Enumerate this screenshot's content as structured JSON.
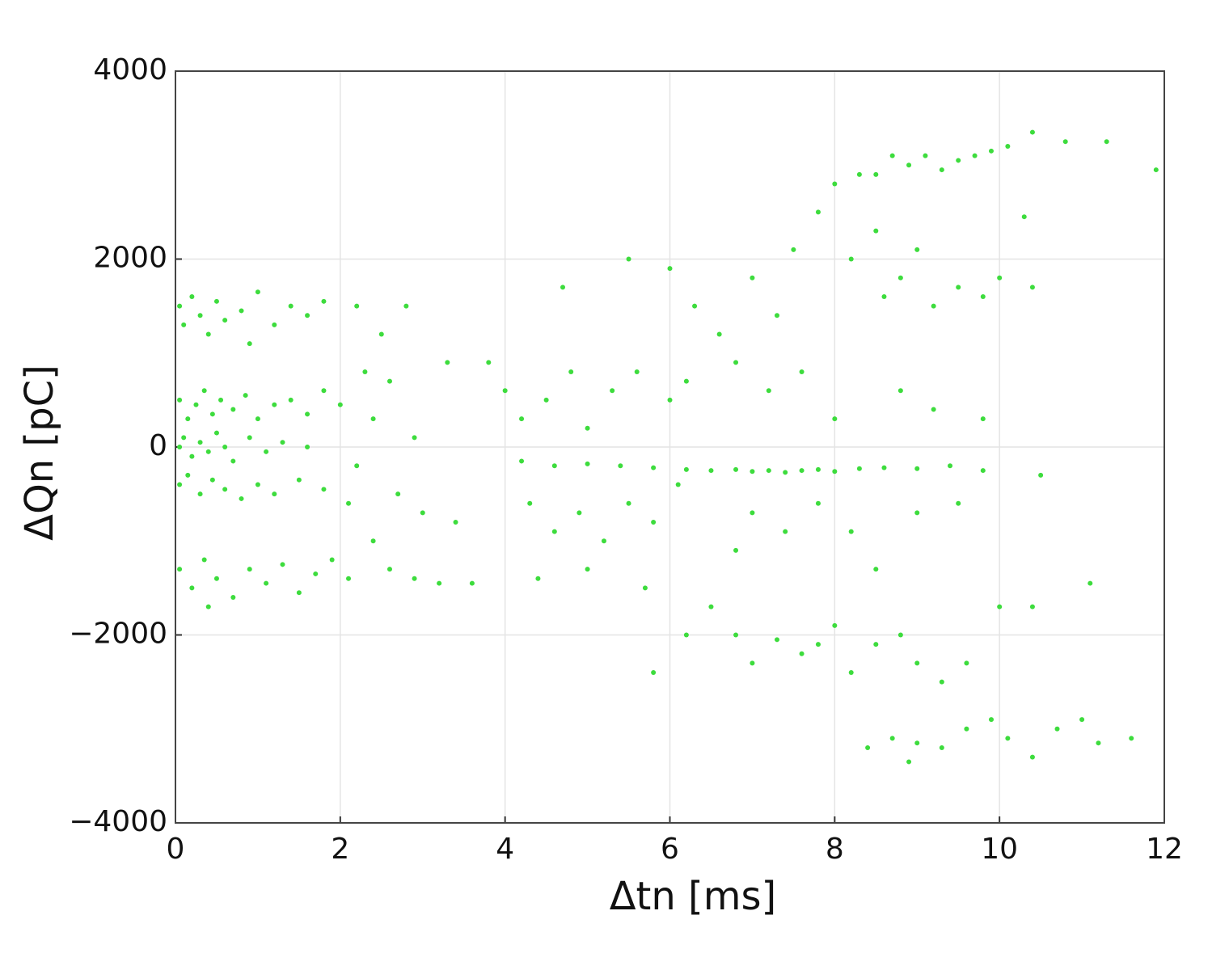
{
  "chart_data": {
    "type": "scatter",
    "x_label": "Δtn [ms]",
    "y_label": "ΔQn [pC]",
    "color": "#3ddc3d",
    "grid": true,
    "xlim": [
      0,
      12
    ],
    "xticks": [
      0,
      2,
      4,
      6,
      8,
      10,
      12
    ],
    "ylim": [
      -4000,
      4000
    ],
    "yticks": [
      {
        "value": -4000,
        "label": "−4000"
      },
      {
        "value": -2000,
        "label": "−2000"
      },
      0,
      2000,
      4000
    ],
    "x": [
      0.05,
      0.1,
      0.2,
      0.3,
      0.4,
      0.5,
      0.6,
      0.8,
      1.0,
      1.2,
      1.4,
      1.6,
      1.8,
      0.9,
      0.05,
      0.15,
      0.25,
      0.35,
      0.45,
      0.55,
      0.7,
      0.85,
      1.0,
      1.2,
      1.4,
      1.6,
      1.8,
      2.0,
      0.05,
      0.1,
      0.2,
      0.3,
      0.4,
      0.5,
      0.6,
      0.7,
      0.9,
      1.1,
      1.3,
      1.6,
      0.05,
      0.15,
      0.3,
      0.45,
      0.6,
      0.8,
      1.0,
      1.2,
      1.5,
      1.8,
      2.1,
      0.05,
      0.2,
      0.35,
      0.5,
      0.7,
      0.9,
      1.1,
      1.3,
      1.5,
      1.7,
      1.9,
      2.1,
      0.4,
      2.2,
      2.5,
      2.8,
      2.3,
      2.6,
      2.4,
      2.9,
      2.2,
      2.7,
      3.0,
      2.4,
      2.6,
      2.9,
      3.2,
      3.3,
      3.4,
      3.6,
      3.8,
      4.0,
      4.2,
      4.5,
      4.8,
      5.0,
      5.3,
      5.6,
      6.0,
      6.2,
      4.3,
      4.6,
      4.9,
      5.2,
      5.5,
      5.8,
      6.1,
      4.4,
      5.0,
      5.7,
      4.7,
      5.5,
      6.0,
      6.3,
      6.6,
      7.0,
      7.3,
      6.8,
      7.2,
      7.6,
      7.0,
      7.4,
      6.8,
      7.8,
      8.2,
      8.5,
      9.0,
      9.5,
      9.2,
      9.8,
      8.8,
      8.0,
      4.2,
      4.6,
      5.0,
      5.4,
      5.8,
      6.2,
      6.5,
      6.8,
      7.0,
      7.2,
      7.4,
      7.6,
      7.8,
      8.0,
      8.3,
      8.6,
      9.0,
      9.4,
      9.8,
      10.5,
      7.5,
      7.8,
      8.0,
      8.3,
      8.5,
      8.7,
      8.9,
      9.1,
      9.3,
      9.5,
      9.7,
      9.9,
      10.1,
      10.4,
      10.8,
      11.3,
      11.9,
      8.2,
      8.5,
      8.8,
      9.0,
      9.5,
      9.8,
      10.0,
      10.4,
      10.3,
      8.6,
      9.2,
      6.2,
      6.5,
      6.8,
      7.0,
      7.3,
      7.6,
      7.8,
      8.0,
      8.2,
      8.5,
      8.8,
      9.0,
      9.3,
      9.6,
      5.8,
      8.4,
      8.7,
      9.0,
      9.3,
      9.6,
      9.9,
      10.1,
      10.4,
      10.7,
      11.0,
      11.2,
      11.6,
      8.9,
      10.0,
      11.1,
      10.4
    ],
    "values": [
      1500,
      1300,
      1600,
      1400,
      1200,
      1550,
      1350,
      1450,
      1650,
      1300,
      1500,
      1400,
      1550,
      1100,
      500,
      300,
      450,
      600,
      350,
      500,
      400,
      550,
      300,
      450,
      500,
      350,
      600,
      450,
      0,
      100,
      -100,
      50,
      -50,
      150,
      0,
      -150,
      100,
      -50,
      50,
      0,
      -400,
      -300,
      -500,
      -350,
      -450,
      -550,
      -400,
      -500,
      -350,
      -450,
      -600,
      -1300,
      -1500,
      -1200,
      -1400,
      -1600,
      -1300,
      -1450,
      -1250,
      -1550,
      -1350,
      -1200,
      -1400,
      -1700,
      1500,
      1200,
      1500,
      800,
      700,
      300,
      100,
      -200,
      -500,
      -700,
      -1000,
      -1300,
      -1400,
      -1450,
      900,
      -800,
      -1450,
      900,
      600,
      300,
      500,
      800,
      200,
      600,
      800,
      500,
      700,
      -600,
      -900,
      -700,
      -1000,
      -600,
      -800,
      -400,
      -1400,
      -1300,
      -1500,
      1700,
      2000,
      1900,
      1500,
      1200,
      1800,
      1400,
      900,
      600,
      800,
      -700,
      -900,
      -1100,
      -600,
      -900,
      -1300,
      -700,
      -600,
      400,
      300,
      600,
      300,
      -150,
      -200,
      -180,
      -200,
      -220,
      -240,
      -250,
      -240,
      -260,
      -250,
      -270,
      -250,
      -240,
      -260,
      -230,
      -220,
      -230,
      -200,
      -250,
      -300,
      2100,
      2500,
      2800,
      2900,
      2900,
      3100,
      3000,
      3100,
      2950,
      3050,
      3100,
      3150,
      3200,
      3350,
      3250,
      3250,
      2950,
      2000,
      2300,
      1800,
      2100,
      1700,
      1600,
      1800,
      1700,
      2450,
      1600,
      1500,
      -2000,
      -1700,
      -2000,
      -2300,
      -2050,
      -2200,
      -2100,
      -1900,
      -2400,
      -2100,
      -2000,
      -2300,
      -2500,
      -2300,
      -2400,
      -3200,
      -3100,
      -3150,
      -3200,
      -3000,
      -2900,
      -3100,
      -3300,
      -3000,
      -2900,
      -3150,
      -3100,
      -3350,
      -1700,
      -1450,
      -1700
    ]
  }
}
